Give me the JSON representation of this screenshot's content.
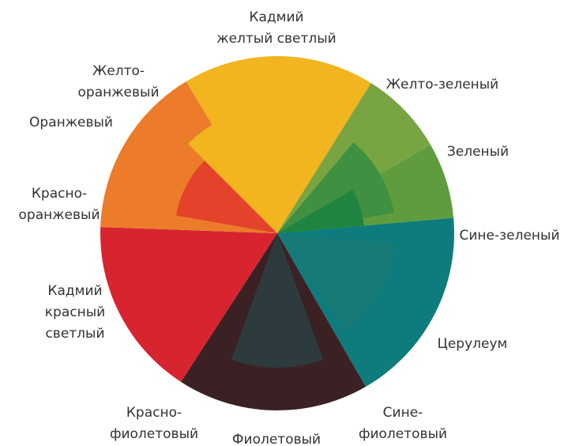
{
  "labels": [
    {
      "lines": [
        "Кадмий",
        "желтый светлый"
      ]
    },
    {
      "lines": [
        "Желто-",
        "оранжевый"
      ]
    },
    {
      "lines": [
        "Оранжевый"
      ]
    },
    {
      "lines": [
        "Красно-",
        "оранжевый"
      ]
    },
    {
      "lines": [
        "Кадмий",
        "красный",
        "светлый"
      ]
    },
    {
      "lines": [
        "Красно-",
        "фиолетовый"
      ]
    },
    {
      "lines": [
        "Фиолетовый"
      ]
    },
    {
      "lines": [
        "Сине-",
        "фиолетовый"
      ]
    },
    {
      "lines": [
        "Церулеум"
      ]
    },
    {
      "lines": [
        "Сине-зеленый"
      ]
    },
    {
      "lines": [
        "Зеленый"
      ]
    },
    {
      "lines": [
        "Желто-зеленый"
      ]
    }
  ]
}
